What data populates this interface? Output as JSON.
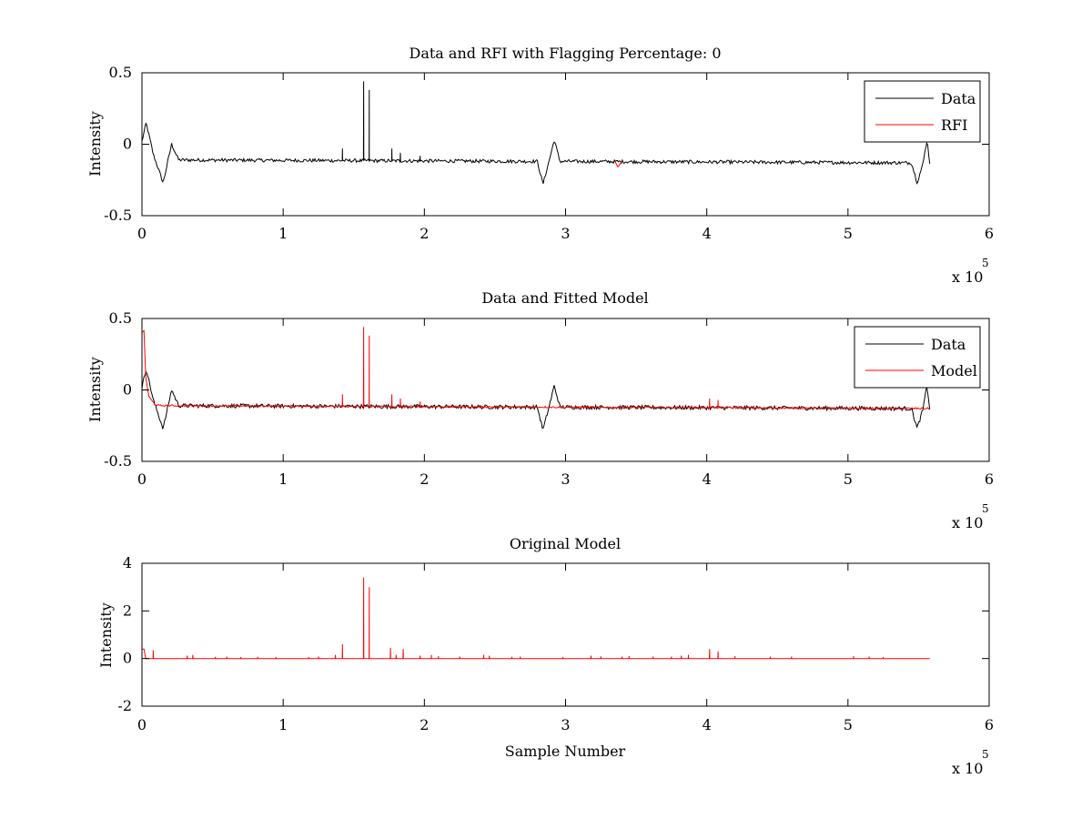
{
  "figure": {
    "background": "#ffffff",
    "axis_color": "#000000",
    "data_color": "#000000",
    "model_color": "#ff0000"
  },
  "chart_data": [
    {
      "type": "line",
      "title": "Data and RFI with Flagging Percentage: 0",
      "xlabel": "",
      "ylabel": "Intensity",
      "xlim": [
        0,
        600000
      ],
      "ylim": [
        -0.5,
        0.5
      ],
      "x_ticks": [
        "0",
        "1",
        "2",
        "3",
        "4",
        "5",
        "6"
      ],
      "y_ticks": [
        "0.5",
        "0",
        "-0.5"
      ],
      "x_exponent_label": "x 10",
      "x_exponent": "5",
      "grid": false,
      "legend": {
        "position": "top-right",
        "entries": [
          "Data",
          "RFI"
        ]
      },
      "series": [
        {
          "name": "Data",
          "color": "#000000",
          "baseline": -0.12,
          "noise": 0.012,
          "points": [
            [
              0,
              0.02
            ],
            [
              3000,
              0.15
            ],
            [
              8000,
              -0.07
            ],
            [
              15000,
              -0.27
            ],
            [
              21000,
              0.0
            ],
            [
              26000,
              -0.11
            ],
            [
              280000,
              -0.12
            ],
            [
              284000,
              -0.28
            ],
            [
              288000,
              -0.13
            ],
            [
              292000,
              0.03
            ],
            [
              296000,
              -0.12
            ],
            [
              545000,
              -0.13
            ],
            [
              549000,
              -0.27
            ],
            [
              553000,
              -0.14
            ],
            [
              556000,
              0.03
            ],
            [
              558000,
              -0.14
            ]
          ],
          "spikes": [
            [
              142000,
              -0.03
            ],
            [
              157000,
              0.44
            ],
            [
              161000,
              0.38
            ],
            [
              177000,
              -0.03
            ],
            [
              183000,
              -0.06
            ],
            [
              197000,
              -0.08
            ]
          ]
        },
        {
          "name": "RFI",
          "color": "#ff0000",
          "points": [
            [
              335000,
              -0.12
            ],
            [
              337000,
              -0.16
            ],
            [
              340000,
              -0.12
            ]
          ]
        }
      ]
    },
    {
      "type": "line",
      "title": "Data and Fitted Model",
      "xlabel": "",
      "ylabel": "Intensity",
      "xlim": [
        0,
        600000
      ],
      "ylim": [
        -0.5,
        0.5
      ],
      "x_ticks": [
        "0",
        "1",
        "2",
        "3",
        "4",
        "5",
        "6"
      ],
      "y_ticks": [
        "0.5",
        "0",
        "-0.5"
      ],
      "x_exponent_label": "x 10",
      "x_exponent": "5",
      "grid": false,
      "legend": {
        "position": "top-right",
        "entries": [
          "Data",
          "Model"
        ]
      },
      "series": [
        {
          "name": "Data",
          "color": "#000000",
          "baseline": -0.12,
          "noise": 0.014,
          "points": [
            [
              0,
              0.02
            ],
            [
              3000,
              0.15
            ],
            [
              8000,
              -0.07
            ],
            [
              15000,
              -0.27
            ],
            [
              21000,
              0.0
            ],
            [
              26000,
              -0.11
            ],
            [
              280000,
              -0.12
            ],
            [
              284000,
              -0.28
            ],
            [
              288000,
              -0.13
            ],
            [
              292000,
              0.03
            ],
            [
              296000,
              -0.12
            ],
            [
              545000,
              -0.13
            ],
            [
              549000,
              -0.27
            ],
            [
              553000,
              -0.14
            ],
            [
              556000,
              0.03
            ],
            [
              558000,
              -0.14
            ]
          ],
          "spikes": []
        },
        {
          "name": "Model",
          "color": "#ff0000",
          "baseline": -0.11,
          "noise": 0.006,
          "points": [
            [
              0,
              0.4
            ],
            [
              1500,
              0.42
            ],
            [
              2500,
              0.1
            ],
            [
              5000,
              -0.05
            ],
            [
              9000,
              -0.1
            ],
            [
              12000,
              -0.11
            ],
            [
              558000,
              -0.13
            ]
          ],
          "spikes": [
            [
              142000,
              -0.03
            ],
            [
              157000,
              0.44
            ],
            [
              161000,
              0.38
            ],
            [
              177000,
              -0.03
            ],
            [
              183000,
              -0.06
            ],
            [
              197000,
              -0.08
            ],
            [
              402000,
              -0.06
            ],
            [
              408000,
              -0.07
            ]
          ]
        }
      ]
    },
    {
      "type": "line",
      "title": "Original Model",
      "xlabel": "Sample Number",
      "ylabel": "Intensity",
      "xlim": [
        0,
        600000
      ],
      "ylim": [
        -2,
        4
      ],
      "x_ticks": [
        "0",
        "1",
        "2",
        "3",
        "4",
        "5",
        "6"
      ],
      "y_ticks": [
        "4",
        "2",
        "0",
        "-2"
      ],
      "x_exponent_label": "x 10",
      "x_exponent": "5",
      "grid": false,
      "legend": null,
      "series": [
        {
          "color": "#ff0000",
          "baseline": 0,
          "noise": 0,
          "points": [
            [
              0,
              0.4
            ],
            [
              1500,
              0.4
            ],
            [
              2500,
              0
            ],
            [
              558000,
              0
            ]
          ],
          "spikes": [
            [
              8000,
              0.35
            ],
            [
              32000,
              0.12
            ],
            [
              36000,
              0.15
            ],
            [
              52000,
              0.07
            ],
            [
              60000,
              0.08
            ],
            [
              70000,
              0.06
            ],
            [
              82000,
              0.07
            ],
            [
              95000,
              0.06
            ],
            [
              118000,
              0.06
            ],
            [
              125000,
              0.08
            ],
            [
              137000,
              0.15
            ],
            [
              142000,
              0.6
            ],
            [
              157000,
              3.4
            ],
            [
              161000,
              3.0
            ],
            [
              176000,
              0.45
            ],
            [
              180000,
              0.15
            ],
            [
              185000,
              0.4
            ],
            [
              197000,
              0.12
            ],
            [
              205000,
              0.15
            ],
            [
              210000,
              0.1
            ],
            [
              225000,
              0.08
            ],
            [
              242000,
              0.15
            ],
            [
              246000,
              0.12
            ],
            [
              262000,
              0.07
            ],
            [
              268000,
              0.08
            ],
            [
              298000,
              0.06
            ],
            [
              318000,
              0.12
            ],
            [
              325000,
              0.09
            ],
            [
              340000,
              0.08
            ],
            [
              345000,
              0.1
            ],
            [
              362000,
              0.08
            ],
            [
              375000,
              0.08
            ],
            [
              382000,
              0.12
            ],
            [
              387000,
              0.15
            ],
            [
              402000,
              0.4
            ],
            [
              408000,
              0.3
            ],
            [
              420000,
              0.1
            ],
            [
              445000,
              0.08
            ],
            [
              460000,
              0.08
            ],
            [
              504000,
              0.1
            ],
            [
              515000,
              0.08
            ],
            [
              525000,
              0.06
            ]
          ]
        }
      ]
    }
  ]
}
